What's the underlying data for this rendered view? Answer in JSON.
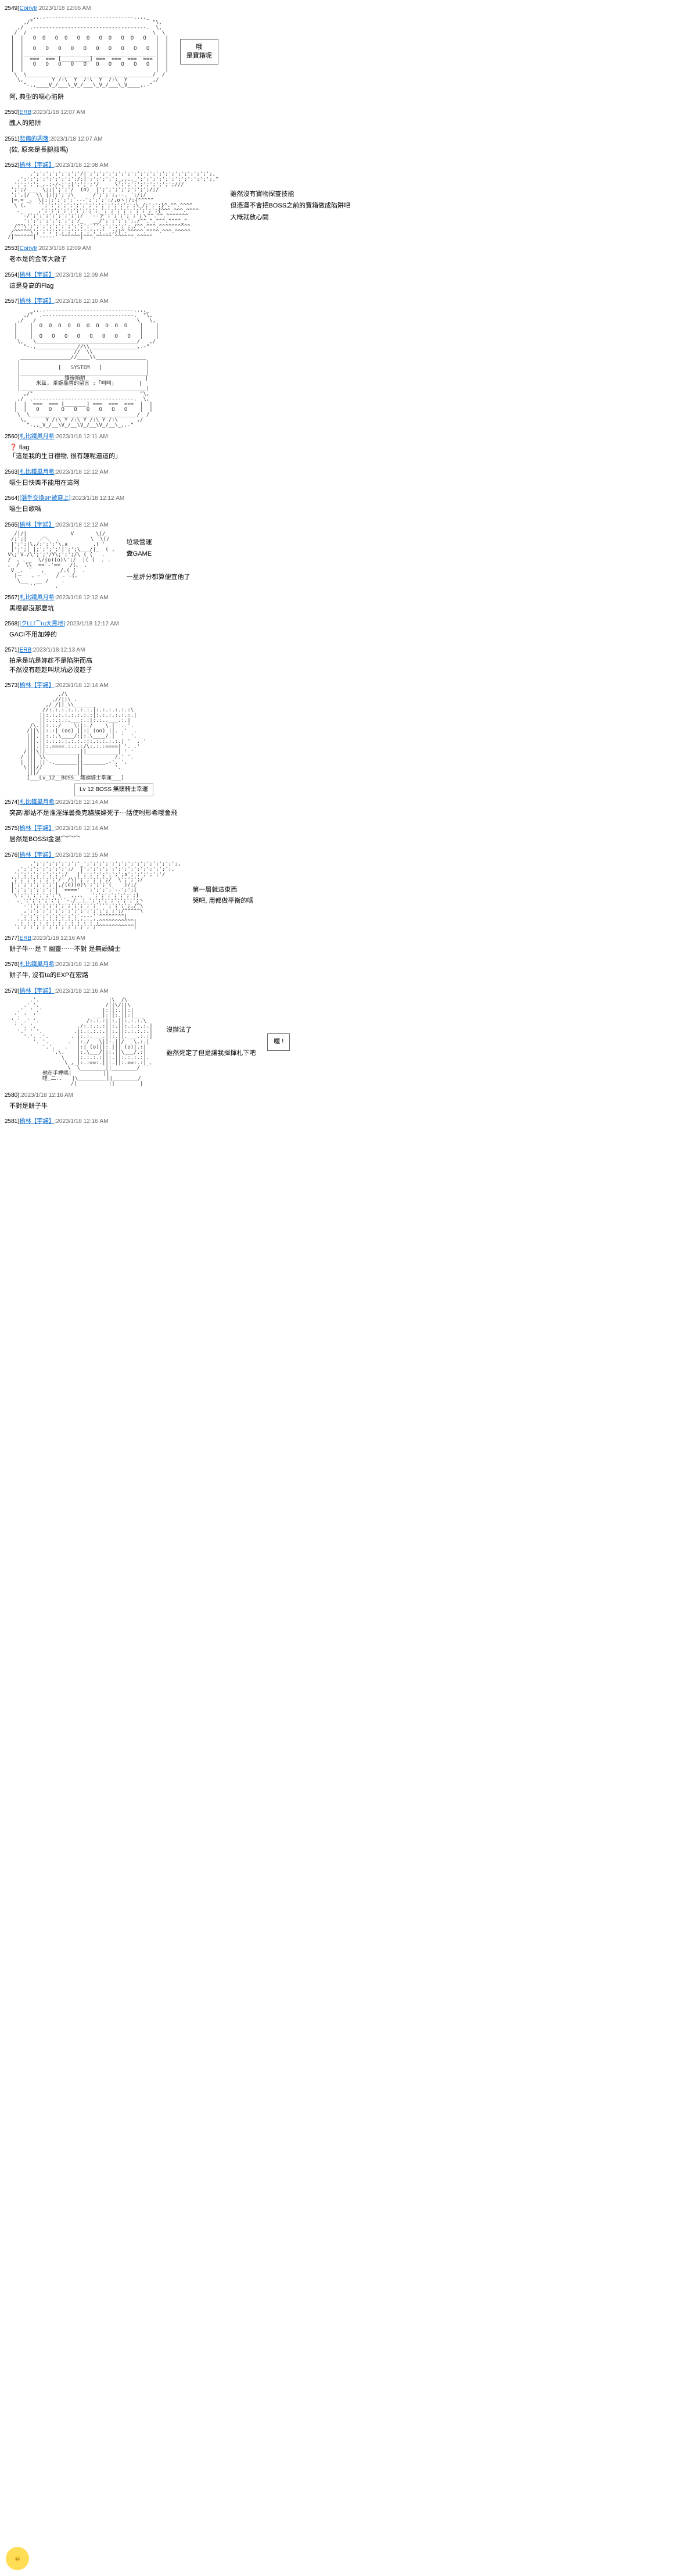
{
  "posts": [
    {
      "n": "2549",
      "user": "Corrvtr",
      "date": "2023/1/18 12:06 AM",
      "body": "阿, 典型的噁心陷阱",
      "hasArt": "chest1",
      "sideBox": "哦\n是寶箱呢"
    },
    {
      "n": "2550",
      "user": "ERB",
      "date": "2023/1/18 12:07 AM",
      "body": "醜人的陷阱"
    },
    {
      "n": "2551",
      "user": "悲傷的凋落",
      "date": "2023/1/18 12:07 AM",
      "body": "(欸, 原來是長腿叔嗎)"
    },
    {
      "n": "2552",
      "user": "榆林【宇諾】",
      "date": "2023/1/18 12:08 AM",
      "body": "",
      "hasArt": "girl1",
      "sideText": "雖然沒有寶物探查技能\n但憑運不會把BOSS之前的寶箱做成陷阱吧\n大概就放心開"
    },
    {
      "n": "2553",
      "user": "Corrvtr",
      "date": "2023/1/18 12:09 AM",
      "body": "老本是的金等大啟子"
    },
    {
      "n": "2554",
      "user": "榆林【宇諾】",
      "date": "2023/1/18 12:09 AM",
      "body": "這是身高的Flag"
    },
    {
      "n": "2557",
      "user": "榆林【宇諾】",
      "date": "2023/1/18 12:10 AM",
      "body": "",
      "hasArt": "chest2",
      "systemBox": {
        "title": "SYSTEM",
        "line1": "獲得陷阱",
        "line2": "米茲, 茶姬晶香的留言 :「呵呵」"
      }
    },
    {
      "n": "2560",
      "user": "札比鐵風月希",
      "date": "2023/1/18 12:11 AM",
      "body": "❓ flag\n「這是我的生日禮物, 很有趣呢還這的」"
    },
    {
      "n": "2563",
      "user": "札比鐵風月希",
      "date": "2023/1/18 12:12 AM",
      "body": "噁生日快樂不能用在這阿"
    },
    {
      "n": "2564",
      "user": "[潛手交換9P被穿上]",
      "date": "2023/1/18 12:12 AM",
      "body": "噁生日歌嗎"
    },
    {
      "n": "2565",
      "user": "榆林【宇諾】",
      "date": "2023/1/18 12:12 AM",
      "body": "",
      "hasArt": "girl2",
      "sideText": "垃圾營運\n糞GAME\n\n一星評分都算便宜他了"
    },
    {
      "n": "2567",
      "user": "札比鐵風月希",
      "date": "2023/1/18 12:12 AM",
      "body": "黑噁都沒那麼坑"
    },
    {
      "n": "2568",
      "user": "[クLLI⌒ru天黑地]",
      "date": "2023/1/18 12:12 AM",
      "body": "GACI不用加婷的"
    },
    {
      "n": "2571",
      "user": "ERB",
      "date": "2023/1/18 12:13 AM",
      "body": "拍承是坑是妳趁不是陷阱而高\n不然沒有趁趁叫坑坑必沒趁子"
    },
    {
      "n": "2573",
      "user": "榆林【宇諾】",
      "date": "2023/1/18 12:14 AM",
      "body": "",
      "hasArt": "knight",
      "bossBox": "Lv 12  BOSS  無頭騎士幸運"
    },
    {
      "n": "2574",
      "user": "札比鐵風月希",
      "date": "2023/1/18 12:14 AM",
      "body": "突高!那姑不是淮淫綠曇桑克貓族婦死子⋯話使咐形希哦會飛"
    },
    {
      "n": "2575",
      "user": "榆林【宇諾】",
      "date": "2023/1/18 12:14 AM",
      "body": "居然是BOSSI金混⌒⌒⌒"
    },
    {
      "n": "2576",
      "user": "榆林【宇諾】",
      "date": "2023/1/18 12:15 AM",
      "body": "",
      "hasArt": "girl3",
      "sideText": "第一層就這東西\n哭吧, 用都做平衡的嗎"
    },
    {
      "n": "2577",
      "user": "ERB",
      "date": "2023/1/18 12:16 AM",
      "body": "餅子牛⋯是 T 幽靈⋯⋯不對 是無頭騎士"
    },
    {
      "n": "2578",
      "user": "札比鐵風月希",
      "date": "2023/1/18 12:16 AM",
      "body": "餅子牛, 沒有ta的EXP在宏路"
    },
    {
      "n": "2579",
      "user": "榆林【宇諾】",
      "date": "2023/1/18 12:16 AM",
      "body": "",
      "hasArt": "knight2",
      "sideText": "沒辦法了\n\n雖然死定了但是讓我揮揮札下吧",
      "sideBox": "喔 !"
    },
    {
      "n": "2580",
      "user": "",
      "date": "2023/1/18 12:16 AM",
      "body": "不對是餅子牛"
    },
    {
      "n": "2581",
      "user": "榆林【宇諾】",
      "date": "2023/1/18 12:16 AM",
      "body": ""
    }
  ],
  "aa": {
    "chest1": "        _,,..-‐‐‐‐‐‐‐‐‐‐‐‐‐‐‐‐‐‐‐‐‐‐‐‐‐‐-..,,_\n      ,/\"                                      \"\\,\n    ,/  .-‐‐‐‐‐‐‐‐‐‐‐‐‐‐‐‐‐‐‐‐‐‐‐‐‐‐‐‐‐‐‐‐‐‐-.  \\,\n   /  /                                        \\  \\\n  |  |   O  O   O  O   O  O   O  O   O  O   O   |  |\n  |  |                                          |  |\n  |  |   O   O   O   O   O   O   O   O   O   O  |  |\n  |  |__________________________________________|  |\n  |  |  ===  === [_________] ===  ===  ===  === |  |\n  |  |   O   O   O   O   O   O   O   O   O   O  |  |\n  |  |                                          |  |\n   \\  \\________________________________________/  /\n    \\,         Y /:\\  Y  /:\\  Y  /:\\  Y        ,/\n      \"-.,____V_/___\\_V_/___\\_V_/___\\_V____,.-\"",
    "girl1": "        ,';';';';';';';'/|';';';';';';';';';';';';';';';';';';';';,\n    ,';';';';';';';';';/;|';';';';';_,,.._';';';';';';';';';';';';,^\n   ';';';';_,.;-/‐;';|';';';'/     \\';';';';';';';';';///\n  ';';/ __  \\;;|';';'/  (o)  |';';';';';';';';/;/\n  ';',|/  \\\\ |;|;';';\\      /';';';,--. ';/;/\n  |=.= _、 \\|;|;';';';`‐‐‐';';';';/,oヽ|/;{^^^^^\n   \\ (、`  `';';';';';';';';';';';';';';';\\_/;';';}^.^^.^^^^\n    、_    ,';';';';';';';';';_';';';';';';';';';{^^^.^^^.^^^^\n     `-/';';';';';';';';/  `‐‐ァ';';';';';';ヽ^^.^^.^^^^^^^\n      ';';';';';';';';'/_   __/';';';';';,/^^.^.^^^.^^^^_^\n   /^^\\';';';';';';';';';';`''';';';';';,/^^.^^^.^^^^^^^^^^\n  /^^^^^\\';';';';';';';';';';';'_,;/|^.^^^^^.^^^^.^^^.^^^^^\n /|^^^^^^|`‐--‐‐'´^^^^^^|^^^.^^^^^.^^^^^^.^^^^^",
    "chest2": "        _,,..-‐‐‐‐‐‐‐‐‐‐‐‐‐‐‐‐‐‐‐‐‐‐‐‐‐‐-..,,_\n      ,/\"  .-‐‐‐‐‐‐‐‐‐‐‐‐‐‐‐‐‐‐‐‐‐‐‐‐‐‐‐-.  \"\\,\n    ,/   /                                \\   \\,\n   |    |  O  O  O  O  O  O  O  O  O  O    |    |\n   |    |                                  |    |\n   |    |  O   O   O   O   O   O   O   O   |    |\n    \\,   \\________________________________/   ,/\n      \"-.,_____________//\\\\_______________,.-\"\n                      //  \\\\\n     ________________//____\\\\________________\n    |                                        |\n    |            [   SYSTEM   ]              |\n    |________________________________________|\n    |              獲得陷阱                   |\n    |     米茲, 茶姬晶香的留言 :「呵呵」       |\n    |________________________________________|\n      ,/\"                                  \"\\,\n    ,/  .-‐‐‐‐‐‐‐‐‐‐‐‐‐‐‐‐‐‐‐‐‐‐‐‐‐‐‐‐‐‐-.  \\,\n   |  |  ===  === [_______] ===  ===  ===  |  |\n   |  |   O   O   O   O   O   O   O   O    |  |\n    \\  \\__________________________________/  /\n     \\,      Y /:\\ Y /:\\ Y /:\\ Y /:\\      ,/\n       \"-.,_V_/__\\V_/__\\V_/__\\V_/__\\_,.-\"",
    "girl2": "   /|/|              V       \\(/\n  /;';|    ／＼  .          \\  \\(/\n  |';';|\\,/;';';'\\,∧        .( '\n  |';';| |;';';';'|';';\\___/|_  ( ,\n V\\;'V./\\';';'/Y\\;';';/\\ ( (   .\n /  、.__  \\/(o)(o)\\';/  |( (  . .\n 、 /  \\\\  ==`-'==   /(、 、\n  V _、 `   ,    _/.( (  .\n   |ー   、- '   / . .(、\n    \\__   __ /    .\n       `''      .",
    "knight": "                 ,/\\\n               ,//||\\ .\n             ,/_/||_\\\\_______\n            //:.:.:.:.:.:.:.|:.:.:.:.:.:\\\n           ||:.:.:.:.:.:.:.:|:.:.:.:.:.:.|\n           ||:.:.:.:.___:.:|:.:..___.:.|\n        /\\.||:.:./    \\:|:./    \\.|  . '.\n       /||\\||:.:| (oo) ||:| (oo) ||. .'  .\n       |||.||:.:.\\____/:|:.\\____/.|  '  '.\n       |||.||:.:.:.:.:.:.:|:.:.:.:.:.| '  . '\n       |||.||:.====.:.:.:/\\:.:.:====| '. .'\n      /|||\\||___________||__________| ' '\n     / ||| \\\\          ||          /.' '.\n     | ||| ||`-._______||_______.-'. '.\n      \\|||//           ||          '.\n       |||/____________||__________\n       [___Lv_12__BOSS__無頭騎士幸運___]",
    "girl3": "        ,';';';';';';';'_';';';';';';';';';';';';';';';,\n    ,';';';';';';';';/  |';';';';';';';';';';';';';';,\n   ';';';';';';';';/   |';';';';';';';∧';';';';';'/\n  ';';';';';';';'/  /\\|';';';';';/  \\';';';/\n  |';';';';';';'|,/(o)(o)\\';';';'(    )/;/\n  |';';';';';';'| `===='  ';';';';`--';';{\n   \\';';';';';';'\\   ,..、  ';';';';';';';}\n    、';';';';';';'`-./__|_';';';';';';';';ヽ\n     `-';';';';';';';';';';';`''';';';';,/^\\\n      ,';';';';';';';';';';';';';';';/^^^^^\\\n     ';';';';';';';';';`‐--‐'´^^^^^^^^|\n    ';';';';';';';';';';';';';^^^^^^^^^^^|\n   ';';';';';';';';';';';';';^^^^^^^^^^^^|",
    "knight2": "        .'.                      |\\  /\\\n      .' '.                     /||\\/||\\\n    .'  ' .'                   |:||:.||:|\n   '. '  '                  ___|:||:.||:|___\n  '.' .' '.               /:.:.:||:.||:.:.:.\\\n   ' '. '.             ./:.:.:.:||:.||:.:.:.:.|\n    '.' ' '.          .|:.:.:.:.||:.||:.:.:.:.|\n      '.'. .'.       . |:.:.___.||:.||.___.:.:|\n         '. '.      .  |:./   \\||:.||/   \\.:.|\n            '.'.   .   |:| (o)||:.||| (o)|.:|\n               '.\\.    |:.\\___/||:.||\\___/.:|\n                  \\    |:.:.:.:||:.||:.:.:.:|.\n                   \\ ,_|:.:==:.||:.||:.==:.:|_、\n                    \\  \\________||________/\n            他在手裡嗎|          ||\n            睡_二..   |\\_________||________/\n                     /|          ||        |"
  }
}
